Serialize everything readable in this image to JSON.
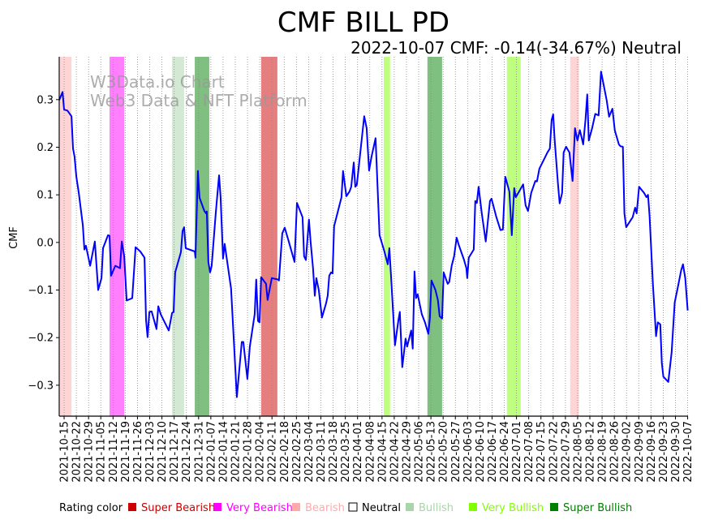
{
  "chart_data": {
    "type": "line",
    "title": "CMF BILL PD",
    "subtitle": "2022-10-07 CMF: -0.14(-34.67%) Neutral",
    "watermark": [
      "W3Data.io Chart",
      "Web3 Data & NFT Platform"
    ],
    "ylabel": "CMF",
    "xlabel": "",
    "x_unit": "days since 2021-10-15",
    "xlim": [
      -2.8,
      357.2
    ],
    "ylim": [
      -0.365,
      0.39
    ],
    "yticks": [
      -0.3,
      -0.2,
      -0.1,
      0.0,
      0.1,
      0.2,
      0.3
    ],
    "ytick_labels": [
      "−0.3",
      "−0.2",
      "−0.1",
      "0.0",
      "0.1",
      "0.2",
      "0.3"
    ],
    "xtick_step_days": 7,
    "xtick_labels": [
      "2021-10-15",
      "2021-10-22",
      "2021-10-29",
      "2021-11-05",
      "2021-11-12",
      "2021-11-19",
      "2021-11-26",
      "2021-12-03",
      "2021-12-10",
      "2021-12-17",
      "2021-12-24",
      "2021-12-31",
      "2022-01-07",
      "2022-01-14",
      "2022-01-21",
      "2022-01-28",
      "2022-02-04",
      "2022-02-11",
      "2022-02-18",
      "2022-02-25",
      "2022-03-04",
      "2022-03-11",
      "2022-03-18",
      "2022-03-25",
      "2022-04-01",
      "2022-04-08",
      "2022-04-15",
      "2022-04-22",
      "2022-04-29",
      "2022-05-06",
      "2022-05-13",
      "2022-05-20",
      "2022-05-27",
      "2022-06-03",
      "2022-06-10",
      "2022-06-17",
      "2022-06-24",
      "2022-07-01",
      "2022-07-08",
      "2022-07-15",
      "2022-07-22",
      "2022-07-29",
      "2022-08-05",
      "2022-08-12",
      "2022-08-19",
      "2022-08-26",
      "2022-09-02",
      "2022-09-09",
      "2022-09-16",
      "2022-09-23",
      "2022-09-30",
      "2022-10-07"
    ],
    "grid": "vertical dotted",
    "series": [
      {
        "name": "CMF",
        "color": "#0000ff",
        "points": [
          [
            -2.8,
            0.299
          ],
          [
            -0.9,
            0.316
          ],
          [
            0,
            0.279
          ],
          [
            1.9,
            0.277
          ],
          [
            4.2,
            0.265
          ],
          [
            5.1,
            0.197
          ],
          [
            6.0,
            0.18
          ],
          [
            7.0,
            0.138
          ],
          [
            8.4,
            0.104
          ],
          [
            10.7,
            0.036
          ],
          [
            11.6,
            -0.015
          ],
          [
            12.5,
            -0.007
          ],
          [
            14.9,
            -0.049
          ],
          [
            17.6,
            0.002
          ],
          [
            19.5,
            -0.1
          ],
          [
            21.4,
            -0.075
          ],
          [
            22.3,
            -0.012
          ],
          [
            25.1,
            0.015
          ],
          [
            26.0,
            0.014
          ],
          [
            26.9,
            -0.07
          ],
          [
            29.3,
            -0.049
          ],
          [
            32.0,
            -0.054
          ],
          [
            33.0,
            0.002
          ],
          [
            34.4,
            -0.029
          ],
          [
            35.8,
            -0.122
          ],
          [
            39.0,
            -0.117
          ],
          [
            40.9,
            -0.01
          ],
          [
            43.6,
            -0.019
          ],
          [
            46.0,
            -0.032
          ],
          [
            46.9,
            -0.163
          ],
          [
            47.8,
            -0.199
          ],
          [
            48.8,
            -0.146
          ],
          [
            50.1,
            -0.145
          ],
          [
            52.9,
            -0.182
          ],
          [
            53.9,
            -0.134
          ],
          [
            55.3,
            -0.151
          ],
          [
            59.9,
            -0.185
          ],
          [
            61.8,
            -0.148
          ],
          [
            62.7,
            -0.146
          ],
          [
            63.6,
            -0.063
          ],
          [
            66.9,
            -0.02
          ],
          [
            67.8,
            0.024
          ],
          [
            68.7,
            0.032
          ],
          [
            69.6,
            -0.012
          ],
          [
            74.8,
            -0.019
          ],
          [
            75.2,
            -0.032
          ],
          [
            76.6,
            0.15
          ],
          [
            77.5,
            0.094
          ],
          [
            80.3,
            0.066
          ],
          [
            81.3,
            0.061
          ],
          [
            81.7,
            0.065
          ],
          [
            82.6,
            -0.041
          ],
          [
            83.6,
            -0.063
          ],
          [
            84.5,
            -0.049
          ],
          [
            86.8,
            0.061
          ],
          [
            88.7,
            0.141
          ],
          [
            89.6,
            0.095
          ],
          [
            91.0,
            -0.034
          ],
          [
            91.9,
            -0.003
          ],
          [
            95.6,
            -0.097
          ],
          [
            98.9,
            -0.325
          ],
          [
            101.7,
            -0.209
          ],
          [
            102.6,
            -0.209
          ],
          [
            104.9,
            -0.287
          ],
          [
            106.3,
            -0.219
          ],
          [
            109.1,
            -0.151
          ],
          [
            110.0,
            -0.078
          ],
          [
            111.0,
            -0.165
          ],
          [
            111.9,
            -0.168
          ],
          [
            112.8,
            -0.073
          ],
          [
            115.6,
            -0.087
          ],
          [
            116.5,
            -0.121
          ],
          [
            118.9,
            -0.075
          ],
          [
            122.6,
            -0.078
          ],
          [
            123.0,
            -0.08
          ],
          [
            124.9,
            0.019
          ],
          [
            126.3,
            0.031
          ],
          [
            128.6,
            0.002
          ],
          [
            131.9,
            -0.041
          ],
          [
            133.3,
            0.083
          ],
          [
            136.5,
            0.053
          ],
          [
            137.4,
            -0.029
          ],
          [
            138.4,
            -0.037
          ],
          [
            140.2,
            0.048
          ],
          [
            141.1,
            0.002
          ],
          [
            142.5,
            -0.054
          ],
          [
            143.5,
            -0.112
          ],
          [
            144.4,
            -0.075
          ],
          [
            145.8,
            -0.1
          ],
          [
            147.6,
            -0.158
          ],
          [
            150.0,
            -0.128
          ],
          [
            150.9,
            -0.112
          ],
          [
            151.8,
            -0.07
          ],
          [
            152.8,
            -0.063
          ],
          [
            153.7,
            -0.065
          ],
          [
            154.6,
            0.034
          ],
          [
            158.8,
            0.095
          ],
          [
            159.7,
            0.15
          ],
          [
            161.6,
            0.097
          ],
          [
            163.4,
            0.107
          ],
          [
            164.4,
            0.117
          ],
          [
            165.8,
            0.168
          ],
          [
            166.7,
            0.117
          ],
          [
            167.6,
            0.121
          ],
          [
            171.8,
            0.265
          ],
          [
            173.2,
            0.24
          ],
          [
            174.6,
            0.151
          ],
          [
            176.0,
            0.18
          ],
          [
            178.3,
            0.219
          ],
          [
            180.6,
            0.015
          ],
          [
            183.4,
            -0.019
          ],
          [
            185.3,
            -0.046
          ],
          [
            186.2,
            -0.012
          ],
          [
            187.1,
            -0.066
          ],
          [
            189.4,
            -0.216
          ],
          [
            191.3,
            -0.165
          ],
          [
            192.2,
            -0.146
          ],
          [
            193.6,
            -0.262
          ],
          [
            195.5,
            -0.202
          ],
          [
            196.4,
            -0.219
          ],
          [
            198.7,
            -0.185
          ],
          [
            199.6,
            -0.223
          ],
          [
            200.6,
            -0.061
          ],
          [
            201.5,
            -0.117
          ],
          [
            202.4,
            -0.109
          ],
          [
            204.8,
            -0.151
          ],
          [
            206.6,
            -0.168
          ],
          [
            208.5,
            -0.192
          ],
          [
            209.4,
            -0.16
          ],
          [
            210.3,
            -0.08
          ],
          [
            212.6,
            -0.1
          ],
          [
            214.0,
            -0.121
          ],
          [
            215.0,
            -0.155
          ],
          [
            216.4,
            -0.16
          ],
          [
            217.3,
            -0.063
          ],
          [
            219.6,
            -0.087
          ],
          [
            220.5,
            -0.083
          ],
          [
            221.9,
            -0.049
          ],
          [
            223.3,
            -0.029
          ],
          [
            224.7,
            0.01
          ],
          [
            226.1,
            -0.007
          ],
          [
            228.9,
            -0.036
          ],
          [
            230.3,
            -0.054
          ],
          [
            230.8,
            -0.075
          ],
          [
            231.7,
            -0.032
          ],
          [
            234.5,
            -0.015
          ],
          [
            235.4,
            0.087
          ],
          [
            236.3,
            0.083
          ],
          [
            237.3,
            0.117
          ],
          [
            239.1,
            0.061
          ],
          [
            241.4,
            0.002
          ],
          [
            243.8,
            0.087
          ],
          [
            244.7,
            0.092
          ],
          [
            247.5,
            0.053
          ],
          [
            249.8,
            0.026
          ],
          [
            251.2,
            0.027
          ],
          [
            252.6,
            0.138
          ],
          [
            254.9,
            0.107
          ],
          [
            256.3,
            0.015
          ],
          [
            257.7,
            0.114
          ],
          [
            258.6,
            0.095
          ],
          [
            260.5,
            0.107
          ],
          [
            262.8,
            0.122
          ],
          [
            264.2,
            0.078
          ],
          [
            265.6,
            0.066
          ],
          [
            267.4,
            0.104
          ],
          [
            269.8,
            0.129
          ],
          [
            270.7,
            0.128
          ],
          [
            272.1,
            0.155
          ],
          [
            274.4,
            0.172
          ],
          [
            276.7,
            0.189
          ],
          [
            278.1,
            0.197
          ],
          [
            279.1,
            0.257
          ],
          [
            280.0,
            0.269
          ],
          [
            280.9,
            0.214
          ],
          [
            282.8,
            0.121
          ],
          [
            283.7,
            0.082
          ],
          [
            285.1,
            0.104
          ],
          [
            286.0,
            0.189
          ],
          [
            287.4,
            0.201
          ],
          [
            289.3,
            0.189
          ],
          [
            291.1,
            0.129
          ],
          [
            292.5,
            0.24
          ],
          [
            293.9,
            0.214
          ],
          [
            295.3,
            0.236
          ],
          [
            297.2,
            0.206
          ],
          [
            298.5,
            0.257
          ],
          [
            299.5,
            0.311
          ],
          [
            300.4,
            0.214
          ],
          [
            302.3,
            0.24
          ],
          [
            304.1,
            0.27
          ],
          [
            306.0,
            0.267
          ],
          [
            307.4,
            0.359
          ],
          [
            310.6,
            0.299
          ],
          [
            312.0,
            0.264
          ],
          [
            313.9,
            0.281
          ],
          [
            315.3,
            0.235
          ],
          [
            317.6,
            0.206
          ],
          [
            318.5,
            0.202
          ],
          [
            319.9,
            0.201
          ],
          [
            320.8,
            0.061
          ],
          [
            321.8,
            0.032
          ],
          [
            325.5,
            0.053
          ],
          [
            326.9,
            0.073
          ],
          [
            327.8,
            0.061
          ],
          [
            329.2,
            0.117
          ],
          [
            332.0,
            0.104
          ],
          [
            333.4,
            0.095
          ],
          [
            334.3,
            0.1
          ],
          [
            335.2,
            0.056
          ],
          [
            337.1,
            -0.087
          ],
          [
            338.9,
            -0.197
          ],
          [
            339.9,
            -0.168
          ],
          [
            341.3,
            -0.172
          ],
          [
            342.2,
            -0.253
          ],
          [
            343.1,
            -0.282
          ],
          [
            345.9,
            -0.293
          ],
          [
            347.8,
            -0.231
          ],
          [
            349.6,
            -0.126
          ],
          [
            351.5,
            -0.092
          ],
          [
            353.3,
            -0.058
          ],
          [
            354.3,
            -0.046
          ],
          [
            355.6,
            -0.075
          ],
          [
            357.0,
            -0.143
          ]
        ]
      }
    ],
    "rating_bands": [
      {
        "rating": "Bearish",
        "start": -2.3,
        "end": 4.2
      },
      {
        "rating": "Very Bearish",
        "start": 26.0,
        "end": 34.4
      },
      {
        "rating": "Bullish",
        "start": 61.8,
        "end": 68.7
      },
      {
        "rating": "Super Bullish",
        "start": 74.8,
        "end": 83.1
      },
      {
        "rating": "Super Bearish",
        "start": 112.8,
        "end": 122.1
      },
      {
        "rating": "Very Bullish",
        "start": 183.0,
        "end": 186.6
      },
      {
        "rating": "Super Bullish",
        "start": 208.0,
        "end": 216.4
      },
      {
        "rating": "Very Bullish",
        "start": 253.5,
        "end": 261.4
      },
      {
        "rating": "Bearish",
        "start": 289.7,
        "end": 294.8
      }
    ],
    "legend": {
      "title": "Rating color",
      "placement": "bottom",
      "items": [
        {
          "label": "Super Bearish",
          "color": "#cc0000"
        },
        {
          "label": "Very Bearish",
          "color": "#ff00ff"
        },
        {
          "label": "Bearish",
          "color": "#ffaaaa"
        },
        {
          "label": "Neutral",
          "color": "#ffffff"
        },
        {
          "label": "Bullish",
          "color": "#aad4aa"
        },
        {
          "label": "Very Bullish",
          "color": "#80ff00"
        },
        {
          "label": "Super Bullish",
          "color": "#008000"
        }
      ]
    }
  }
}
